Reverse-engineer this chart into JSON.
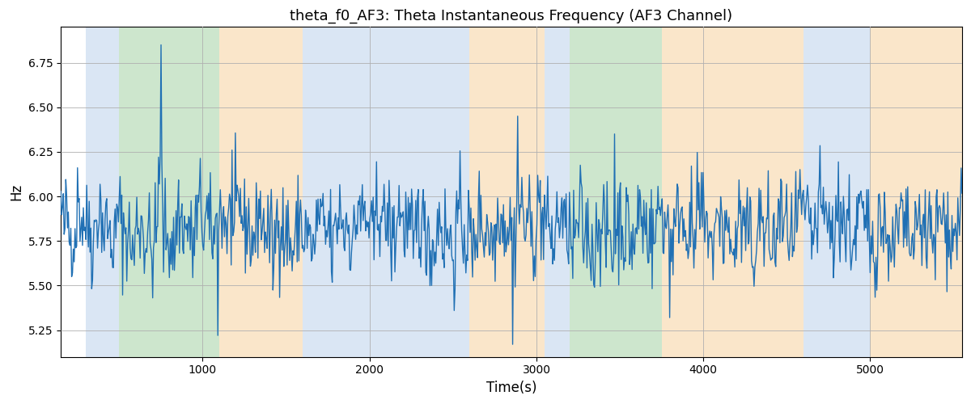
{
  "title": "theta_f0_AF3: Theta Instantaneous Frequency (AF3 Channel)",
  "xlabel": "Time(s)",
  "ylabel": "Hz",
  "xlim": [
    150,
    5550
  ],
  "ylim": [
    5.1,
    6.95
  ],
  "yticks": [
    5.25,
    5.5,
    5.75,
    6.0,
    6.25,
    6.5,
    6.75
  ],
  "xticks": [
    1000,
    2000,
    3000,
    4000,
    5000
  ],
  "line_color": "#2070b4",
  "line_width": 1.0,
  "bg_color": "#ffffff",
  "grid_color": "#b0b0b0",
  "regions": [
    {
      "start": 300,
      "end": 500,
      "color": "#adc8e8",
      "alpha": 0.45
    },
    {
      "start": 500,
      "end": 1100,
      "color": "#90c990",
      "alpha": 0.45
    },
    {
      "start": 1100,
      "end": 1600,
      "color": "#f5c98a",
      "alpha": 0.45
    },
    {
      "start": 1600,
      "end": 2600,
      "color": "#adc8e8",
      "alpha": 0.45
    },
    {
      "start": 2600,
      "end": 3050,
      "color": "#f5c98a",
      "alpha": 0.45
    },
    {
      "start": 3050,
      "end": 3200,
      "color": "#adc8e8",
      "alpha": 0.45
    },
    {
      "start": 3200,
      "end": 3750,
      "color": "#90c990",
      "alpha": 0.45
    },
    {
      "start": 3750,
      "end": 4600,
      "color": "#f5c98a",
      "alpha": 0.45
    },
    {
      "start": 4600,
      "end": 5000,
      "color": "#adc8e8",
      "alpha": 0.45
    },
    {
      "start": 5000,
      "end": 5600,
      "color": "#f5c98a",
      "alpha": 0.45
    }
  ],
  "seed": 42,
  "n_points": 1080,
  "t_start": 150,
  "t_end": 5550,
  "base_freq": 5.82,
  "noise_std": 0.13
}
